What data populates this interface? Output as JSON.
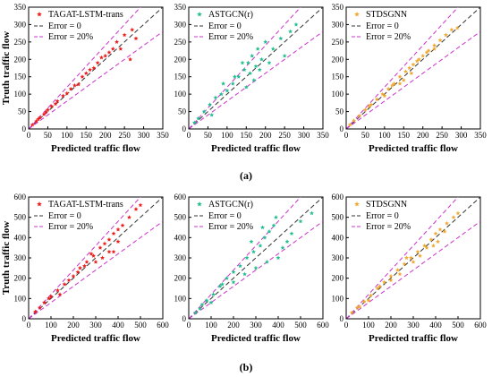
{
  "figure": {
    "captions": [
      "(a)",
      "(b)"
    ]
  },
  "legend_entries": {
    "error0": "Error = 0",
    "error20": "Error = 20%"
  },
  "reference_colors": {
    "error0": "#333333",
    "error20": "#cc33cc"
  },
  "chart_data": [
    {
      "type": "scatter",
      "series": [
        {
          "name": "TAGAT-LSTM-trans",
          "color": "#ee1c1c",
          "marker": "star"
        }
      ],
      "xlabel": "Predicted traffic flow",
      "ylabel": "Truth traffic flow",
      "xlim": [
        0,
        350
      ],
      "ylim": [
        0,
        350
      ],
      "xticks": [
        0,
        50,
        100,
        150,
        200,
        250,
        300,
        350
      ],
      "yticks": [
        0,
        50,
        100,
        150,
        200,
        250,
        300,
        350
      ],
      "points": [
        [
          10,
          12
        ],
        [
          20,
          22
        ],
        [
          30,
          33
        ],
        [
          45,
          48
        ],
        [
          60,
          65
        ],
        [
          75,
          80
        ],
        [
          90,
          95
        ],
        [
          100,
          102
        ],
        [
          120,
          125
        ],
        [
          140,
          150
        ],
        [
          160,
          170
        ],
        [
          180,
          190
        ],
        [
          200,
          210
        ],
        [
          210,
          220
        ],
        [
          230,
          250
        ],
        [
          250,
          270
        ],
        [
          270,
          285
        ],
        [
          280,
          260
        ],
        [
          265,
          200
        ],
        [
          240,
          230
        ],
        [
          150,
          160
        ],
        [
          110,
          115
        ],
        [
          130,
          128
        ],
        [
          170,
          175
        ],
        [
          190,
          205
        ],
        [
          220,
          230
        ],
        [
          50,
          55
        ],
        [
          70,
          72
        ],
        [
          40,
          42
        ],
        [
          25,
          28
        ]
      ],
      "reference_lines": [
        "Error = 0",
        "Error = 20%"
      ]
    },
    {
      "type": "scatter",
      "series": [
        {
          "name": "ASTGCN(r)",
          "color": "#1fbf8f",
          "marker": "star"
        }
      ],
      "xlabel": "Predicted traffic flow",
      "ylabel": "",
      "xlim": [
        0,
        350
      ],
      "ylim": [
        0,
        350
      ],
      "xticks": [
        0,
        50,
        100,
        150,
        200,
        250,
        300,
        350
      ],
      "yticks": [
        0,
        50,
        100,
        150,
        200,
        250,
        300,
        350
      ],
      "points": [
        [
          15,
          18
        ],
        [
          25,
          30
        ],
        [
          40,
          50
        ],
        [
          55,
          70
        ],
        [
          70,
          90
        ],
        [
          85,
          100
        ],
        [
          100,
          110
        ],
        [
          115,
          130
        ],
        [
          130,
          150
        ],
        [
          145,
          170
        ],
        [
          155,
          190
        ],
        [
          160,
          160
        ],
        [
          165,
          210
        ],
        [
          170,
          140
        ],
        [
          175,
          180
        ],
        [
          180,
          230
        ],
        [
          185,
          170
        ],
        [
          190,
          200
        ],
        [
          200,
          250
        ],
        [
          210,
          190
        ],
        [
          220,
          230
        ],
        [
          240,
          260
        ],
        [
          250,
          210
        ],
        [
          265,
          280
        ],
        [
          280,
          300
        ],
        [
          150,
          120
        ],
        [
          140,
          190
        ],
        [
          120,
          150
        ],
        [
          60,
          40
        ],
        [
          90,
          130
        ]
      ],
      "reference_lines": [
        "Error = 0",
        "Error = 20%"
      ]
    },
    {
      "type": "scatter",
      "series": [
        {
          "name": "STDSGNN",
          "color": "#f0a830",
          "marker": "star"
        }
      ],
      "xlabel": "Predicted traffic flow",
      "ylabel": "",
      "xlim": [
        0,
        350
      ],
      "ylim": [
        0,
        350
      ],
      "xticks": [
        0,
        50,
        100,
        150,
        200,
        250,
        300,
        350
      ],
      "yticks": [
        0,
        50,
        100,
        150,
        200,
        250,
        300,
        350
      ],
      "points": [
        [
          10,
          12
        ],
        [
          20,
          24
        ],
        [
          35,
          38
        ],
        [
          50,
          55
        ],
        [
          65,
          70
        ],
        [
          80,
          85
        ],
        [
          95,
          100
        ],
        [
          110,
          115
        ],
        [
          125,
          130
        ],
        [
          140,
          150
        ],
        [
          155,
          165
        ],
        [
          165,
          175
        ],
        [
          175,
          185
        ],
        [
          185,
          195
        ],
        [
          200,
          210
        ],
        [
          215,
          225
        ],
        [
          230,
          240
        ],
        [
          245,
          255
        ],
        [
          260,
          270
        ],
        [
          275,
          285
        ],
        [
          290,
          290
        ],
        [
          150,
          140
        ],
        [
          170,
          160
        ],
        [
          190,
          200
        ],
        [
          120,
          125
        ],
        [
          100,
          95
        ],
        [
          210,
          220
        ],
        [
          140,
          130
        ],
        [
          60,
          65
        ],
        [
          230,
          230
        ]
      ],
      "reference_lines": [
        "Error = 0",
        "Error = 20%"
      ]
    },
    {
      "type": "scatter",
      "series": [
        {
          "name": "TAGAT-LSTM-trans",
          "color": "#ee1c1c",
          "marker": "star"
        }
      ],
      "xlabel": "Predicted traffic flow",
      "ylabel": "Truth traffic flow",
      "xlim": [
        0,
        600
      ],
      "ylim": [
        0,
        600
      ],
      "xticks": [
        0,
        100,
        200,
        300,
        400,
        500,
        600
      ],
      "yticks": [
        0,
        100,
        200,
        300,
        400,
        500,
        600
      ],
      "points": [
        [
          30,
          35
        ],
        [
          50,
          55
        ],
        [
          70,
          80
        ],
        [
          100,
          110
        ],
        [
          130,
          140
        ],
        [
          160,
          170
        ],
        [
          200,
          210
        ],
        [
          230,
          250
        ],
        [
          260,
          280
        ],
        [
          290,
          310
        ],
        [
          320,
          350
        ],
        [
          340,
          370
        ],
        [
          360,
          390
        ],
        [
          380,
          420
        ],
        [
          400,
          440
        ],
        [
          420,
          460
        ],
        [
          450,
          500
        ],
        [
          480,
          540
        ],
        [
          500,
          560
        ],
        [
          380,
          330
        ],
        [
          300,
          280
        ],
        [
          250,
          260
        ],
        [
          180,
          190
        ],
        [
          140,
          120
        ],
        [
          330,
          300
        ],
        [
          360,
          330
        ],
        [
          400,
          380
        ],
        [
          280,
          320
        ],
        [
          220,
          230
        ],
        [
          90,
          100
        ]
      ],
      "reference_lines": [
        "Error = 0",
        "Error = 20%"
      ]
    },
    {
      "type": "scatter",
      "series": [
        {
          "name": "ASTGCN(r)",
          "color": "#1fbf8f",
          "marker": "star"
        }
      ],
      "xlabel": "Predicted traffic flow",
      "ylabel": "",
      "xlim": [
        0,
        600
      ],
      "ylim": [
        0,
        600
      ],
      "xticks": [
        0,
        100,
        200,
        300,
        400,
        500,
        600
      ],
      "yticks": [
        0,
        100,
        200,
        300,
        400,
        500,
        600
      ],
      "points": [
        [
          30,
          30
        ],
        [
          50,
          50
        ],
        [
          80,
          90
        ],
        [
          110,
          120
        ],
        [
          140,
          160
        ],
        [
          170,
          200
        ],
        [
          200,
          230
        ],
        [
          230,
          260
        ],
        [
          260,
          300
        ],
        [
          290,
          330
        ],
        [
          320,
          360
        ],
        [
          340,
          400
        ],
        [
          360,
          430
        ],
        [
          380,
          460
        ],
        [
          400,
          300
        ],
        [
          420,
          350
        ],
        [
          440,
          380
        ],
        [
          460,
          420
        ],
        [
          500,
          480
        ],
        [
          550,
          520
        ],
        [
          300,
          250
        ],
        [
          250,
          220
        ],
        [
          350,
          280
        ],
        [
          390,
          500
        ],
        [
          330,
          450
        ],
        [
          280,
          380
        ],
        [
          200,
          180
        ],
        [
          150,
          170
        ],
        [
          100,
          80
        ],
        [
          60,
          70
        ]
      ],
      "reference_lines": [
        "Error = 0",
        "Error = 20%"
      ]
    },
    {
      "type": "scatter",
      "series": [
        {
          "name": "STDSGNN",
          "color": "#f0a830",
          "marker": "star"
        }
      ],
      "xlabel": "Predicted traffic flow",
      "ylabel": "",
      "xlim": [
        0,
        600
      ],
      "ylim": [
        0,
        600
      ],
      "xticks": [
        0,
        100,
        200,
        300,
        400,
        500,
        600
      ],
      "yticks": [
        0,
        100,
        200,
        300,
        400,
        500,
        600
      ],
      "points": [
        [
          25,
          30
        ],
        [
          50,
          55
        ],
        [
          80,
          85
        ],
        [
          110,
          115
        ],
        [
          140,
          150
        ],
        [
          170,
          180
        ],
        [
          200,
          210
        ],
        [
          230,
          240
        ],
        [
          260,
          270
        ],
        [
          290,
          300
        ],
        [
          320,
          330
        ],
        [
          350,
          360
        ],
        [
          380,
          390
        ],
        [
          400,
          420
        ],
        [
          420,
          440
        ],
        [
          450,
          470
        ],
        [
          480,
          500
        ],
        [
          300,
          280
        ],
        [
          330,
          310
        ],
        [
          360,
          350
        ],
        [
          270,
          300
        ],
        [
          240,
          220
        ],
        [
          390,
          360
        ],
        [
          410,
          380
        ],
        [
          440,
          430
        ],
        [
          500,
          520
        ],
        [
          200,
          190
        ],
        [
          150,
          160
        ],
        [
          100,
          90
        ],
        [
          60,
          60
        ]
      ],
      "reference_lines": [
        "Error = 0",
        "Error = 20%"
      ]
    }
  ]
}
